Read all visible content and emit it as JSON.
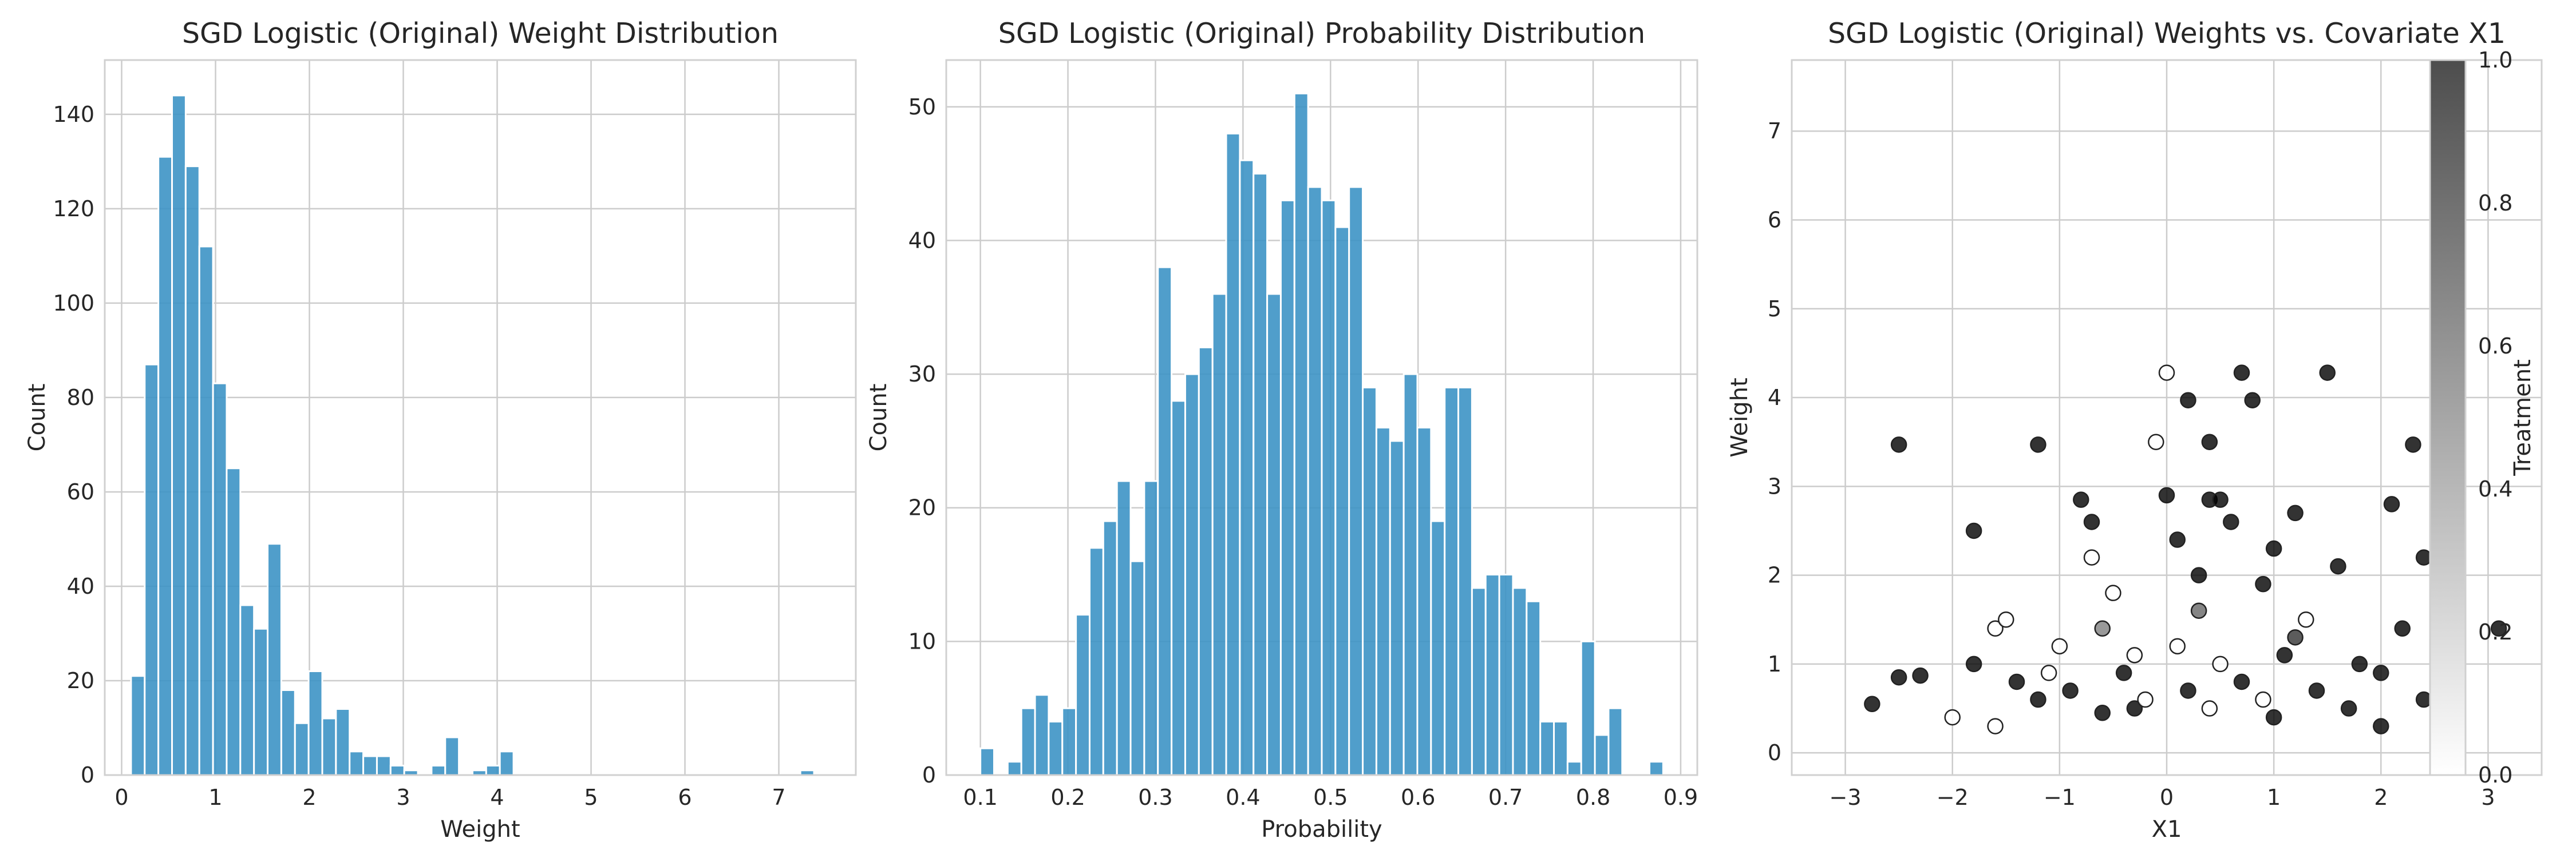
{
  "chart_data": [
    {
      "type": "bar",
      "title": "SGD Logistic (Original) Weight Distribution",
      "xlabel": "Weight",
      "ylabel": "Count",
      "xlim": [
        -0.18,
        7.82
      ],
      "ylim": [
        0,
        151.5
      ],
      "xticks": [
        0,
        1,
        2,
        3,
        4,
        5,
        6,
        7
      ],
      "yticks": [
        0,
        20,
        40,
        60,
        80,
        100,
        120,
        140
      ],
      "grid": true,
      "bin_width": 0.1455,
      "bin_start": 0.1,
      "values": [
        21,
        87,
        131,
        144,
        129,
        112,
        83,
        65,
        36,
        31,
        49,
        18,
        11,
        22,
        12,
        14,
        5,
        4,
        4,
        2,
        1,
        0,
        2,
        8,
        0,
        1,
        2,
        5,
        0,
        0,
        0,
        0,
        0,
        0,
        0,
        0,
        0,
        0,
        0,
        0,
        0,
        0,
        0,
        0,
        0,
        0,
        0,
        0,
        0,
        1
      ]
    },
    {
      "type": "bar",
      "title": "SGD Logistic (Original) Probability Distribution",
      "xlabel": "Probability",
      "ylabel": "Count",
      "xlim": [
        0.061,
        0.919
      ],
      "ylim": [
        0,
        53.5
      ],
      "xticks": [
        0.1,
        0.2,
        0.3,
        0.4,
        0.5,
        0.6,
        0.7,
        0.8,
        0.9
      ],
      "yticks": [
        0,
        10,
        20,
        30,
        40,
        50
      ],
      "grid": true,
      "bin_width": 0.0156,
      "bin_start": 0.1,
      "values": [
        2,
        0,
        1,
        5,
        6,
        4,
        5,
        12,
        17,
        19,
        22,
        16,
        22,
        38,
        28,
        30,
        32,
        36,
        48,
        46,
        45,
        36,
        43,
        51,
        44,
        43,
        41,
        44,
        29,
        26,
        25,
        30,
        26,
        19,
        29,
        29,
        14,
        15,
        15,
        14,
        13,
        4,
        4,
        1,
        10,
        3,
        5,
        0,
        0,
        1
      ]
    },
    {
      "type": "scatter",
      "title": "SGD Logistic (Original) Weights vs. Covariate X1",
      "xlabel": "X1",
      "ylabel": "Weight",
      "xlim": [
        -3.5,
        3.5
      ],
      "ylim": [
        -0.25,
        7.8
      ],
      "xticks": [
        -3,
        -2,
        -1,
        0,
        1,
        2,
        3
      ],
      "yticks": [
        0,
        1,
        2,
        3,
        4,
        5,
        6,
        7
      ],
      "grid": true,
      "colorbar": {
        "label": "Treatment",
        "range": [
          0,
          1
        ],
        "ticks": [
          "0.0",
          "0.2",
          "0.4",
          "0.6",
          "0.8",
          "1.0"
        ]
      },
      "points": [
        {
          "x": -2.75,
          "y": 0.55,
          "t": 1
        },
        {
          "x": -2.5,
          "y": 3.47,
          "t": 1
        },
        {
          "x": -2.5,
          "y": 0.85,
          "t": 1
        },
        {
          "x": -2.3,
          "y": 0.87,
          "t": 1
        },
        {
          "x": -2.0,
          "y": 0.4,
          "t": 0
        },
        {
          "x": -1.8,
          "y": 2.5,
          "t": 1
        },
        {
          "x": -1.8,
          "y": 1.0,
          "t": 1
        },
        {
          "x": -1.6,
          "y": 1.4,
          "t": 0
        },
        {
          "x": -1.6,
          "y": 0.3,
          "t": 0
        },
        {
          "x": -1.5,
          "y": 1.5,
          "t": 0
        },
        {
          "x": -1.2,
          "y": 3.47,
          "t": 1
        },
        {
          "x": -1.2,
          "y": 0.6,
          "t": 1
        },
        {
          "x": -1.0,
          "y": 1.2,
          "t": 0
        },
        {
          "x": -0.8,
          "y": 2.85,
          "t": 1
        },
        {
          "x": -0.7,
          "y": 2.6,
          "t": 1
        },
        {
          "x": -0.7,
          "y": 2.2,
          "t": 0
        },
        {
          "x": -0.6,
          "y": 0.45,
          "t": 1
        },
        {
          "x": -0.5,
          "y": 1.8,
          "t": 0
        },
        {
          "x": -0.3,
          "y": 1.1,
          "t": 0
        },
        {
          "x": -0.3,
          "y": 0.5,
          "t": 1
        },
        {
          "x": -0.1,
          "y": 3.5,
          "t": 0
        },
        {
          "x": 0.0,
          "y": 2.9,
          "t": 1
        },
        {
          "x": 0.0,
          "y": 4.28,
          "t": 0
        },
        {
          "x": 0.1,
          "y": 2.4,
          "t": 1
        },
        {
          "x": 0.1,
          "y": 1.2,
          "t": 0
        },
        {
          "x": 0.2,
          "y": 3.97,
          "t": 1
        },
        {
          "x": 0.3,
          "y": 2.0,
          "t": 1
        },
        {
          "x": 0.4,
          "y": 2.85,
          "t": 1
        },
        {
          "x": 0.4,
          "y": 3.5,
          "t": 1
        },
        {
          "x": 0.5,
          "y": 2.85,
          "t": 1
        },
        {
          "x": 0.5,
          "y": 1.0,
          "t": 0
        },
        {
          "x": 0.6,
          "y": 2.6,
          "t": 1
        },
        {
          "x": 0.7,
          "y": 4.28,
          "t": 1
        },
        {
          "x": 0.8,
          "y": 3.97,
          "t": 1
        },
        {
          "x": 0.9,
          "y": 1.9,
          "t": 1
        },
        {
          "x": 1.0,
          "y": 0.4,
          "t": 1
        },
        {
          "x": 1.0,
          "y": 2.3,
          "t": 1
        },
        {
          "x": 1.2,
          "y": 2.7,
          "t": 1
        },
        {
          "x": 1.3,
          "y": 1.5,
          "t": 0
        },
        {
          "x": 1.5,
          "y": 4.28,
          "t": 1
        },
        {
          "x": 1.6,
          "y": 2.1,
          "t": 1
        },
        {
          "x": 1.8,
          "y": 1.0,
          "t": 1
        },
        {
          "x": 2.0,
          "y": 0.9,
          "t": 1
        },
        {
          "x": 2.1,
          "y": 2.8,
          "t": 1
        },
        {
          "x": 2.2,
          "y": 1.4,
          "t": 1
        },
        {
          "x": 2.3,
          "y": 3.47,
          "t": 1
        },
        {
          "x": 2.4,
          "y": 2.2,
          "t": 1
        },
        {
          "x": 2.6,
          "y": 1.1,
          "t": 1
        },
        {
          "x": 3.1,
          "y": 1.4,
          "t": 1
        },
        {
          "x": -1.4,
          "y": 0.8,
          "t": 1
        },
        {
          "x": -1.1,
          "y": 0.9,
          "t": 0
        },
        {
          "x": -0.9,
          "y": 0.7,
          "t": 1
        },
        {
          "x": -0.4,
          "y": 0.9,
          "t": 1
        },
        {
          "x": -0.2,
          "y": 0.6,
          "t": 0
        },
        {
          "x": 0.2,
          "y": 0.7,
          "t": 1
        },
        {
          "x": 0.4,
          "y": 0.5,
          "t": 0
        },
        {
          "x": 0.7,
          "y": 0.8,
          "t": 1
        },
        {
          "x": 0.9,
          "y": 0.6,
          "t": 0
        },
        {
          "x": 1.1,
          "y": 1.1,
          "t": 1
        },
        {
          "x": 1.4,
          "y": 0.7,
          "t": 1
        },
        {
          "x": 1.7,
          "y": 0.5,
          "t": 1
        },
        {
          "x": 2.0,
          "y": 0.3,
          "t": 1
        },
        {
          "x": 2.4,
          "y": 0.6,
          "t": 1
        },
        {
          "x": -0.6,
          "y": 1.4,
          "t": 0.5
        },
        {
          "x": 0.3,
          "y": 1.6,
          "t": 0.6
        },
        {
          "x": 1.2,
          "y": 1.3,
          "t": 0.8
        }
      ]
    }
  ]
}
